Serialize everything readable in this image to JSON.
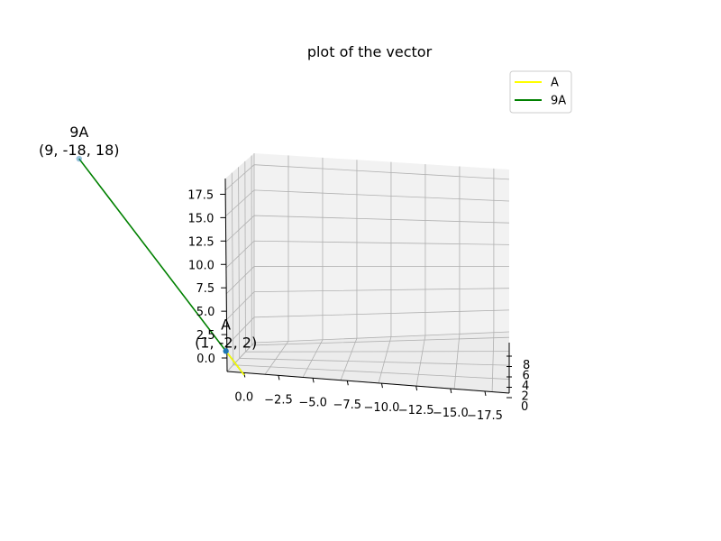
{
  "chart_data": {
    "type": "line",
    "title": "plot of the vector",
    "projection": "3d",
    "legend_position": "top-right",
    "grid": true,
    "x_ticks": [
      "0.0",
      "−2.5",
      "−5.0",
      "−7.5",
      "−10.0",
      "−12.5",
      "−15.0",
      "−17.5"
    ],
    "y_ticks": [
      "0",
      "2",
      "4",
      "6",
      "8"
    ],
    "z_ticks": [
      "0.0",
      "2.5",
      "5.0",
      "7.5",
      "10.0",
      "12.5",
      "15.0",
      "17.5"
    ],
    "series": [
      {
        "name": "A",
        "color": "#ffff00",
        "points": [
          [
            0,
            0,
            0
          ],
          [
            1,
            -2,
            2
          ]
        ]
      },
      {
        "name": "9A",
        "color": "#008000",
        "points": [
          [
            0,
            0,
            0
          ],
          [
            9,
            -18,
            18
          ]
        ]
      }
    ],
    "points": [
      {
        "label": "A",
        "coords": "(1, -2, 2)",
        "x": 1,
        "y": -2,
        "z": 2,
        "color": "#1f77b4"
      },
      {
        "label": "9A",
        "coords": "(9, -18, 18)",
        "x": 9,
        "y": -18,
        "z": 18,
        "color": "#1f77b4"
      }
    ]
  }
}
